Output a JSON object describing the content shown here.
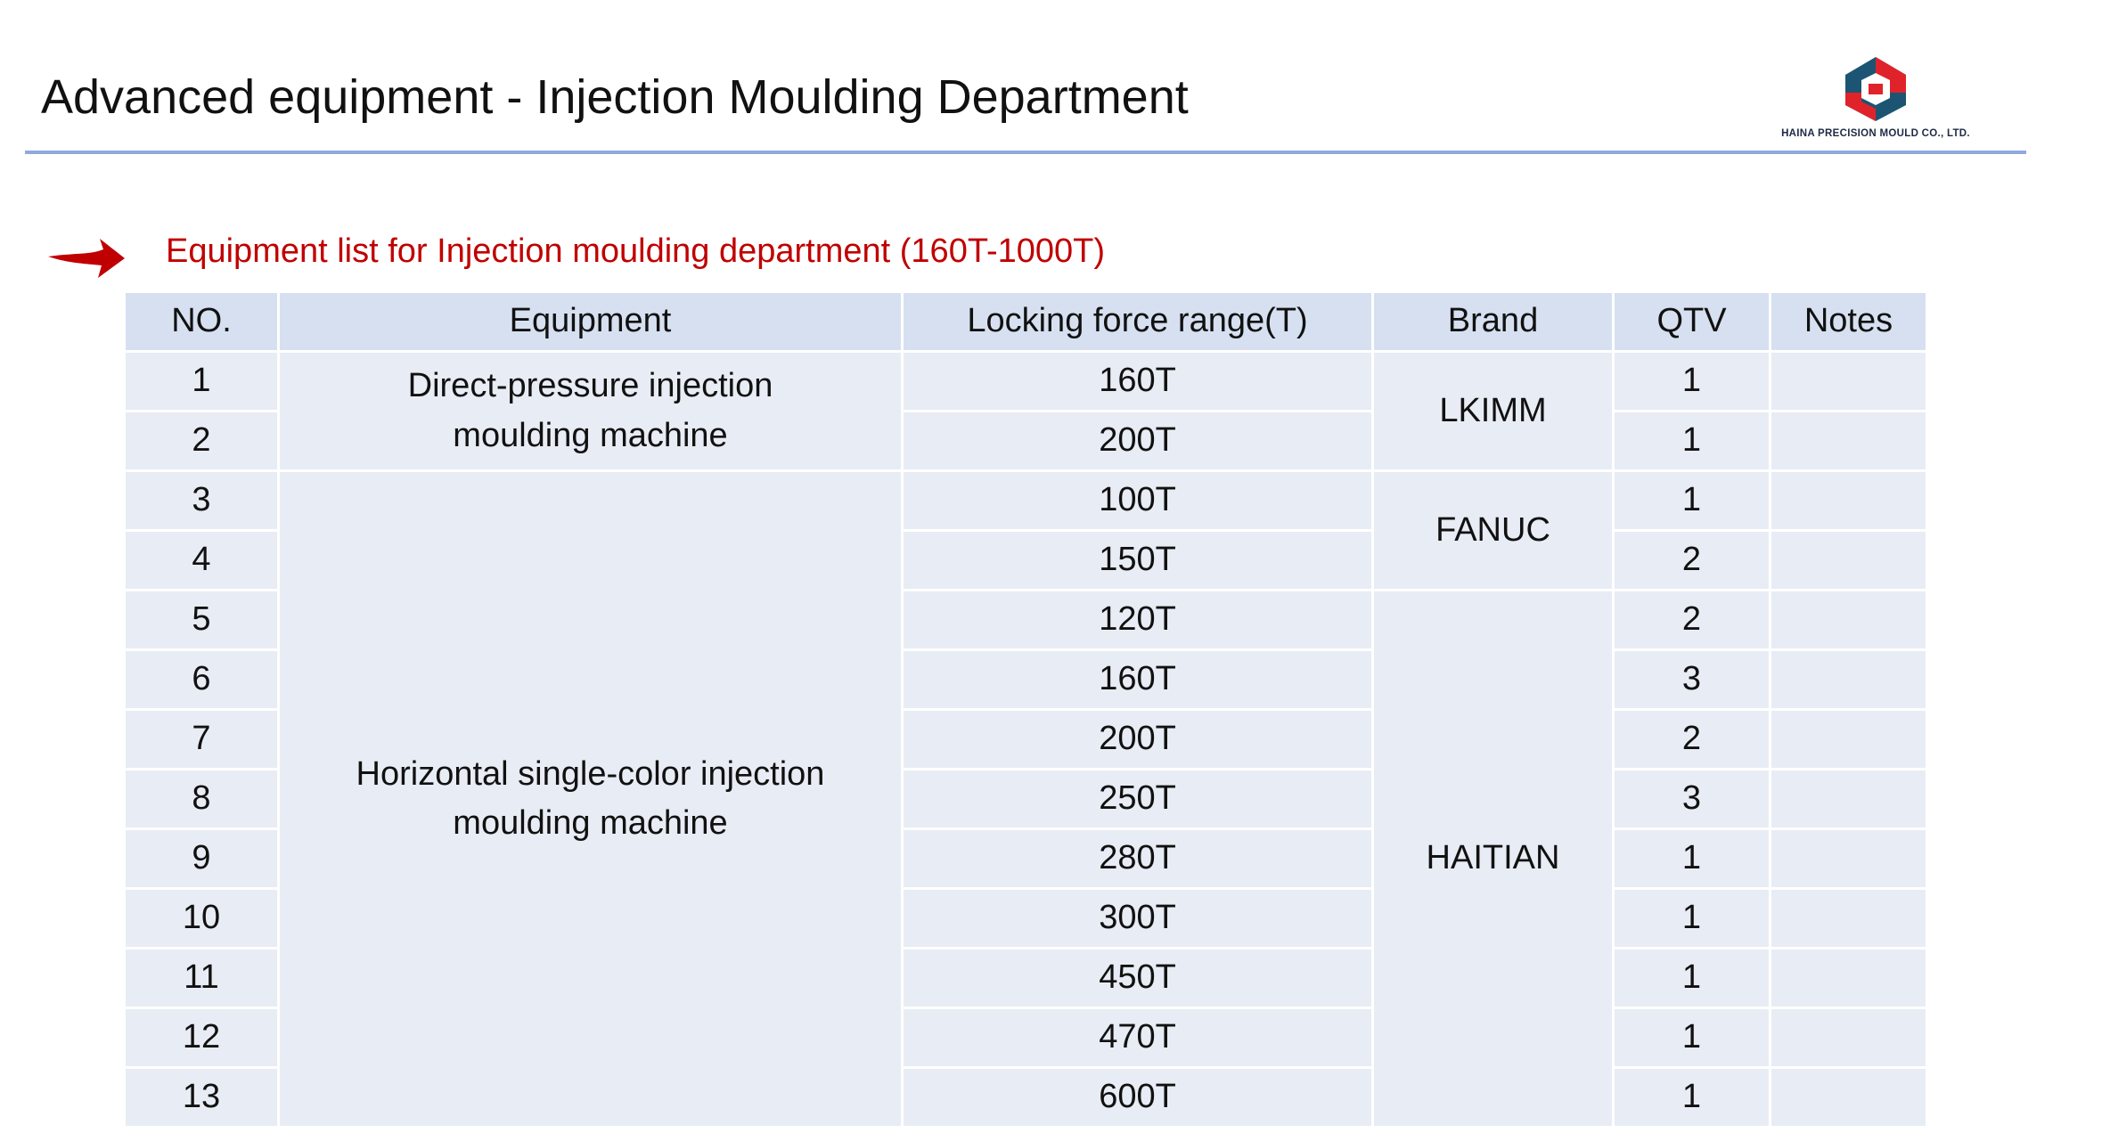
{
  "page": {
    "title": "Advanced equipment - Injection Moulding Department",
    "section_heading": "Equipment list for Injection moulding department (160T-1000T)"
  },
  "logo": {
    "name": "haina-logo-icon",
    "text": "HAINA PRECISION MOULD CO., LTD.",
    "colors": {
      "red": "#e0232b",
      "blue": "#1b5573"
    }
  },
  "colors": {
    "accent_red": "#c00000",
    "rule_blue": "#8faadc",
    "header_fill": "#d6e0f0",
    "cell_fill": "#e8ecf4"
  },
  "table": {
    "headers": [
      "NO.",
      "Equipment",
      "Locking force range(T)",
      "Brand",
      "QTV",
      "Notes"
    ],
    "rows": [
      {
        "no": "1",
        "equipment": "Direct-pressure injection moulding machine",
        "force": "160T",
        "brand": "LKIMM",
        "qty": "1",
        "notes": ""
      },
      {
        "no": "2",
        "force": "200T",
        "qty": "1",
        "notes": ""
      },
      {
        "no": "3",
        "equipment": "Horizontal single-color injection moulding machine",
        "force": "100T",
        "brand": "FANUC",
        "qty": "1",
        "notes": ""
      },
      {
        "no": "4",
        "force": "150T",
        "qty": "2",
        "notes": ""
      },
      {
        "no": "5",
        "force": "120T",
        "brand": "HAITIAN",
        "qty": "2",
        "notes": ""
      },
      {
        "no": "6",
        "force": "160T",
        "qty": "3",
        "notes": ""
      },
      {
        "no": "7",
        "force": "200T",
        "qty": "2",
        "notes": ""
      },
      {
        "no": "8",
        "force": "250T",
        "qty": "3",
        "notes": ""
      },
      {
        "no": "9",
        "force": "280T",
        "qty": "1",
        "notes": ""
      },
      {
        "no": "10",
        "force": "300T",
        "qty": "1",
        "notes": ""
      },
      {
        "no": "11",
        "force": "450T",
        "qty": "1",
        "notes": ""
      },
      {
        "no": "12",
        "force": "470T",
        "qty": "1",
        "notes": ""
      },
      {
        "no": "13",
        "force": "600T",
        "qty": "1",
        "notes": ""
      }
    ]
  }
}
